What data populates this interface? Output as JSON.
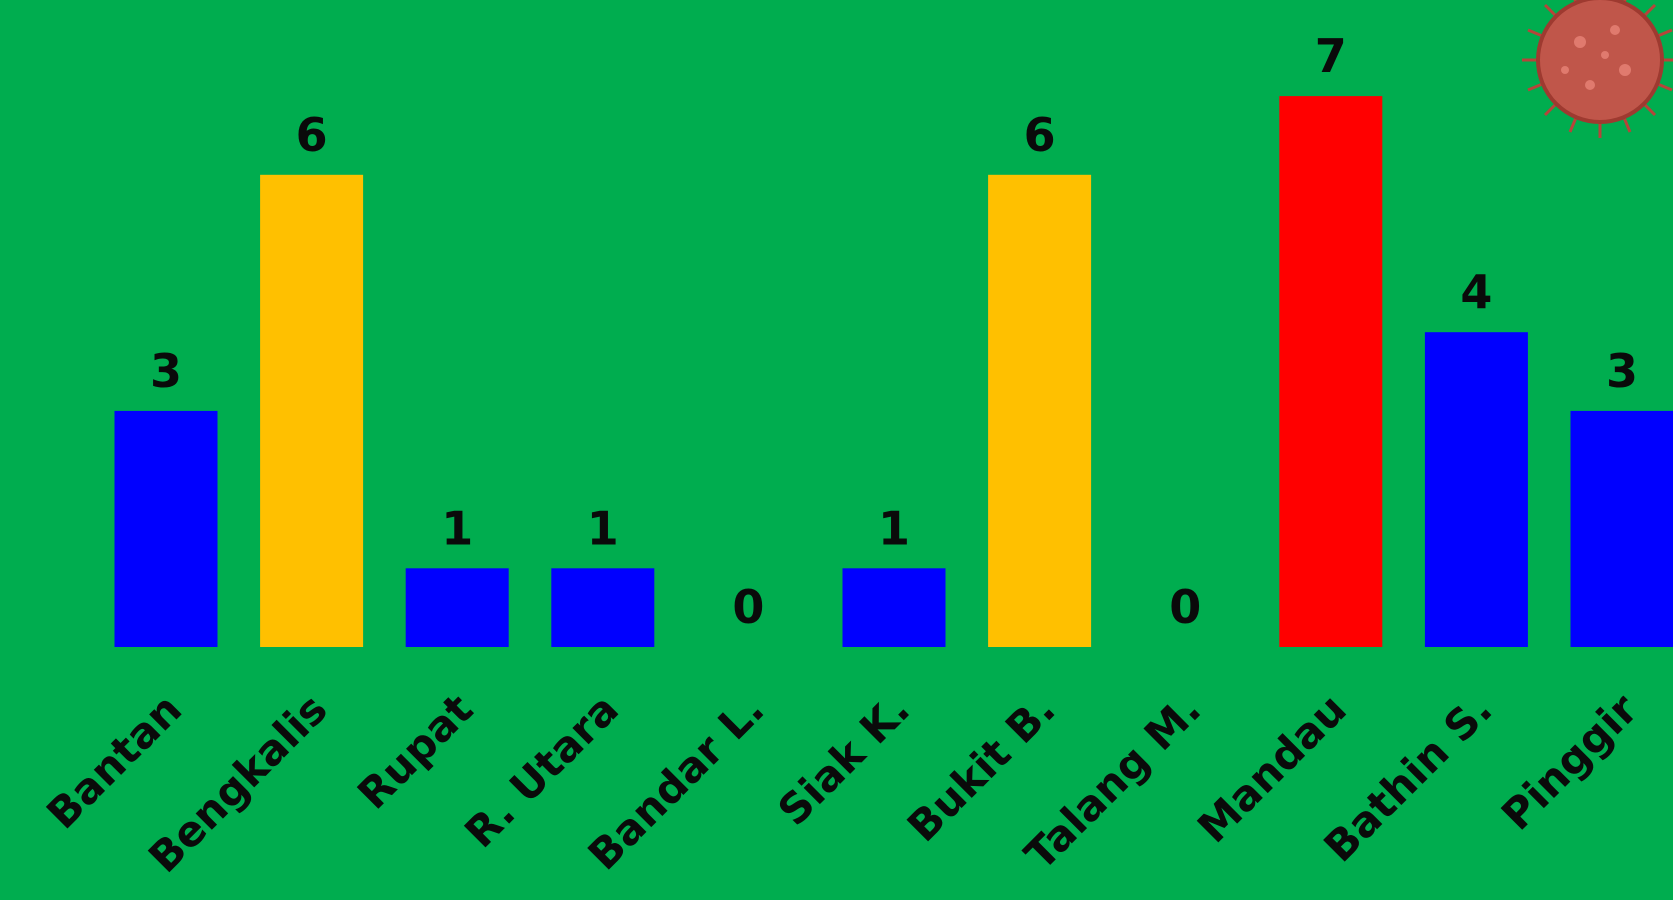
{
  "chart_data": {
    "type": "bar",
    "categories": [
      "Bantan",
      "Bengkalis",
      "Rupat",
      "R. Utara",
      "Bandar L.",
      "Siak K.",
      "Bukit B.",
      "Talang M.",
      "Mandau",
      "Bathin S.",
      "Pinggir"
    ],
    "values": [
      3,
      6,
      1,
      1,
      0,
      1,
      6,
      0,
      7,
      4,
      3
    ],
    "colors": [
      "#0000ff",
      "#ffc000",
      "#0000ff",
      "#0000ff",
      "#0000ff",
      "#0000ff",
      "#ffc000",
      "#0000ff",
      "#ff0000",
      "#0000ff",
      "#0000ff"
    ]
  }
}
